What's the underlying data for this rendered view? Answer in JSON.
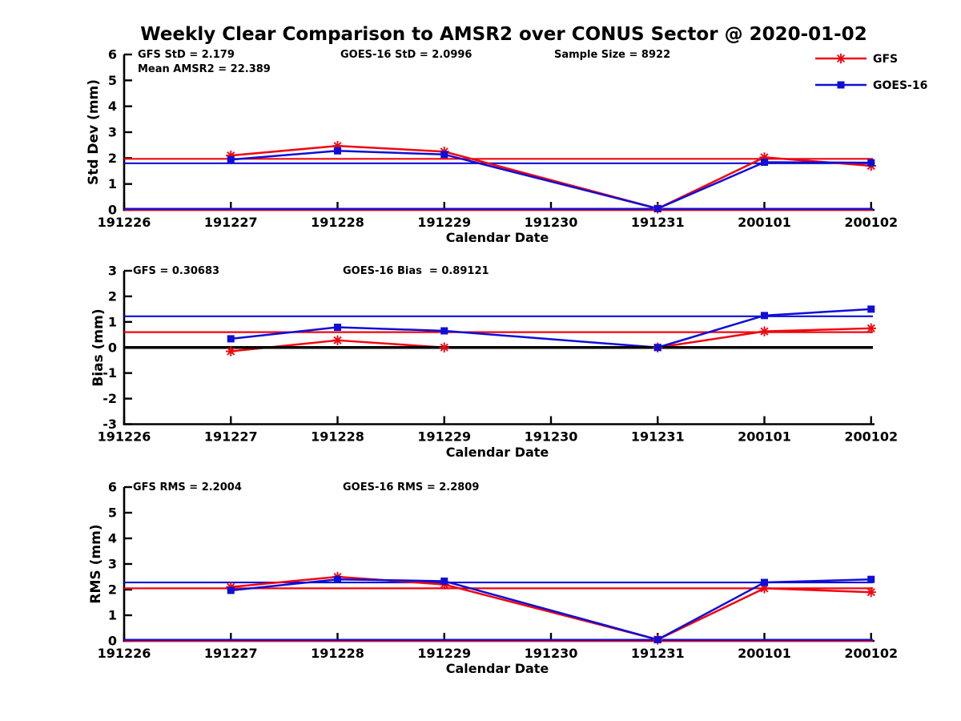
{
  "title": "Weekly Clear Comparison to AMSR2 over CONUS Sector @ 2020-01-02",
  "xlabel": "Calendar Date",
  "legend": {
    "items": [
      {
        "label": "GFS",
        "color": "#f1050f",
        "marker": "asterisk"
      },
      {
        "label": "GOES-16",
        "color": "#0e0ed8",
        "marker": "square"
      }
    ]
  },
  "colors": {
    "gfs_red": "#f1050f",
    "goes_blue": "#0e0ed8",
    "axis_black": "#000000"
  },
  "chart_data": {
    "type": "line",
    "categories": [
      "191226",
      "191227",
      "191228",
      "191229",
      "191230",
      "191231",
      "200101",
      "200102"
    ],
    "panels": [
      {
        "ylabel": "Std Dev (mm)",
        "ylim": [
          0,
          6
        ],
        "yticks": [
          0,
          1,
          2,
          3,
          4,
          5,
          6
        ],
        "annotations": [
          {
            "text": "GFS StD = 2.179"
          },
          {
            "text": "GOES-16 StD = 2.0996"
          },
          {
            "text": "Sample Size = 8922"
          },
          {
            "text": "Mean AMSR2 = 22.389"
          }
        ],
        "series": [
          {
            "name": "GFS",
            "color": "#f1050f",
            "marker": "asterisk",
            "x": [
              "191227",
              "191228",
              "191229",
              "191231",
              "200101",
              "200102"
            ],
            "y": [
              2.1,
              2.47,
              2.25,
              0.05,
              2.03,
              1.7
            ]
          },
          {
            "name": "GOES-16",
            "color": "#0e0ed8",
            "marker": "square",
            "x": [
              "191227",
              "191228",
              "191229",
              "191231",
              "200101",
              "200102"
            ],
            "y": [
              1.94,
              2.28,
              2.14,
              0.05,
              1.84,
              1.82
            ]
          }
        ],
        "ref_lines": [
          {
            "color": "#f1050f",
            "value": 1.97,
            "width": 2.2,
            "layer": "under"
          },
          {
            "color": "#0e0ed8",
            "value": 1.8,
            "width": 2.2,
            "layer": "under"
          },
          {
            "color": "#f1050f",
            "value": 0.0,
            "width": 2.4,
            "layer": "over"
          },
          {
            "color": "#0e0ed8",
            "value": 0.04,
            "width": 2.4,
            "layer": "over"
          }
        ]
      },
      {
        "ylabel": "Bias (mm)",
        "ylim": [
          -3,
          3
        ],
        "yticks": [
          -3,
          -2,
          -1,
          0,
          1,
          2,
          3
        ],
        "annotations": [
          {
            "text": "GFS = 0.30683"
          },
          {
            "text": "GOES-16 Bias  = 0.89121"
          }
        ],
        "series": [
          {
            "name": "GFS",
            "color": "#f1050f",
            "marker": "asterisk",
            "x": [
              "191227",
              "191228",
              "191229",
              "191231",
              "200101",
              "200102"
            ],
            "y": [
              -0.15,
              0.28,
              0.0,
              0.0,
              0.63,
              0.75
            ]
          },
          {
            "name": "GOES-16",
            "color": "#0e0ed8",
            "marker": "square",
            "x": [
              "191227",
              "191228",
              "191229",
              "191231",
              "200101",
              "200102"
            ],
            "y": [
              0.34,
              0.79,
              0.65,
              0.0,
              1.25,
              1.5
            ]
          }
        ],
        "ref_lines": [
          {
            "color": "#0e0ed8",
            "value": 1.22,
            "width": 2.2,
            "layer": "under"
          },
          {
            "color": "#f1050f",
            "value": 0.6,
            "width": 2.2,
            "layer": "under"
          },
          {
            "color": "#000000",
            "value": 0.0,
            "width": 3.4,
            "layer": "over"
          }
        ]
      },
      {
        "ylabel": "RMS (mm)",
        "ylim": [
          0,
          6
        ],
        "yticks": [
          0,
          1,
          2,
          3,
          4,
          5,
          6
        ],
        "annotations": [
          {
            "text": "GFS RMS = 2.2004"
          },
          {
            "text": "GOES-16 RMS = 2.2809"
          }
        ],
        "series": [
          {
            "name": "GFS",
            "color": "#f1050f",
            "marker": "asterisk",
            "x": [
              "191227",
              "191228",
              "191229",
              "191231",
              "200101",
              "200102"
            ],
            "y": [
              2.1,
              2.5,
              2.2,
              0.05,
              2.05,
              1.9
            ]
          },
          {
            "name": "GOES-16",
            "color": "#0e0ed8",
            "marker": "square",
            "x": [
              "191227",
              "191228",
              "191229",
              "191231",
              "200101",
              "200102"
            ],
            "y": [
              1.97,
              2.4,
              2.33,
              0.05,
              2.28,
              2.4
            ]
          }
        ],
        "ref_lines": [
          {
            "color": "#0e0ed8",
            "value": 2.28,
            "width": 2.2,
            "layer": "under"
          },
          {
            "color": "#f1050f",
            "value": 2.05,
            "width": 2.2,
            "layer": "under"
          },
          {
            "color": "#f1050f",
            "value": 0.0,
            "width": 2.4,
            "layer": "over"
          },
          {
            "color": "#0e0ed8",
            "value": 0.04,
            "width": 2.4,
            "layer": "over"
          }
        ]
      }
    ]
  }
}
